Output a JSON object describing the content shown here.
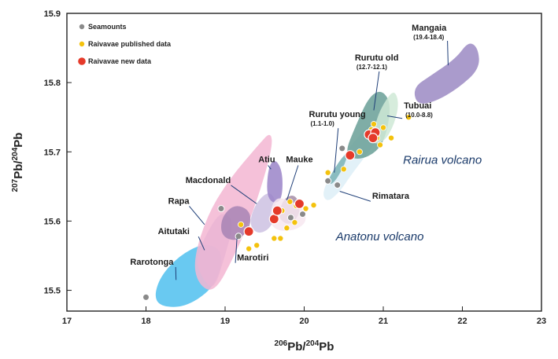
{
  "chart_data": {
    "type": "scatter",
    "xlabel": "206Pb/204Pb",
    "ylabel": "207Pb/204Pb",
    "xlim": [
      17,
      23
    ],
    "ylim": [
      15.47,
      15.9
    ],
    "xticks": [
      "17",
      "18",
      "19",
      "20",
      "21",
      "22",
      "23"
    ],
    "yticks": [
      {
        "v": 15.5,
        "label": "15.5"
      },
      {
        "v": 15.6,
        "label": "15.6"
      },
      {
        "v": 15.7,
        "label": "15.7"
      },
      {
        "v": 15.8,
        "label": "15.8"
      },
      {
        "v": 15.9,
        "label": "15.9"
      }
    ],
    "legend": {
      "position": "top-left",
      "entries": [
        {
          "label": "Seamounts",
          "color": "#8a8a8a"
        },
        {
          "label": "Raivavae published data",
          "color": "#f4c20d"
        },
        {
          "label": "Raivavae new data",
          "color": "#e53a2a"
        }
      ]
    },
    "fields": [
      {
        "name": "Rarotonga",
        "color": "#4fc0ee",
        "points": [
          [
            18.1,
            15.49
          ],
          [
            18.2,
            15.476
          ],
          [
            18.5,
            15.476
          ],
          [
            18.82,
            15.5
          ],
          [
            18.95,
            15.53
          ],
          [
            18.95,
            15.56
          ],
          [
            18.72,
            15.568
          ],
          [
            18.42,
            15.55
          ],
          [
            18.18,
            15.52
          ]
        ]
      },
      {
        "name": "Aitutaki",
        "color": "#b4b1dd",
        "points": [
          [
            18.72,
            15.515
          ],
          [
            18.86,
            15.5
          ],
          [
            19.0,
            15.55
          ],
          [
            19.12,
            15.6
          ],
          [
            18.96,
            15.615
          ],
          [
            18.8,
            15.59
          ],
          [
            18.62,
            15.545
          ]
        ]
      },
      {
        "name": "Rapa",
        "color": "#f3b6d2",
        "points": [
          [
            18.6,
            15.545
          ],
          [
            18.78,
            15.61
          ],
          [
            19.05,
            15.66
          ],
          [
            19.42,
            15.71
          ],
          [
            19.58,
            15.73
          ],
          [
            19.6,
            15.705
          ],
          [
            19.38,
            15.62
          ],
          [
            19.12,
            15.55
          ],
          [
            18.86,
            15.495
          ],
          [
            18.65,
            15.51
          ]
        ]
      },
      {
        "name": "Marotiri",
        "color": "#a784b4",
        "points": [
          [
            18.95,
            15.578
          ],
          [
            19.15,
            15.57
          ],
          [
            19.32,
            15.59
          ],
          [
            19.32,
            15.615
          ],
          [
            19.12,
            15.625
          ],
          [
            18.95,
            15.605
          ]
        ]
      },
      {
        "name": "Macdonald",
        "color": "#ccc1e2",
        "points": [
          [
            19.3,
            15.595
          ],
          [
            19.38,
            15.625
          ],
          [
            19.56,
            15.645
          ],
          [
            19.66,
            15.625
          ],
          [
            19.6,
            15.592
          ],
          [
            19.42,
            15.58
          ]
        ]
      },
      {
        "name": "Atiu",
        "color": "#9a84c8",
        "points": [
          [
            19.52,
            15.64
          ],
          [
            19.55,
            15.68
          ],
          [
            19.64,
            15.69
          ],
          [
            19.73,
            15.67
          ],
          [
            19.72,
            15.63
          ],
          [
            19.6,
            15.625
          ]
        ]
      },
      {
        "name": "Mauke",
        "color": "#a48ca6",
        "points": [
          [
            19.68,
            15.615
          ],
          [
            19.76,
            15.635
          ],
          [
            19.9,
            15.638
          ],
          [
            19.96,
            15.614
          ],
          [
            19.84,
            15.594
          ],
          [
            19.7,
            15.6
          ]
        ]
      },
      {
        "name": "Anatonu",
        "color": "#f7e8f0",
        "points": [
          [
            19.55,
            15.6
          ],
          [
            19.62,
            15.635
          ],
          [
            19.82,
            15.63
          ],
          [
            19.98,
            15.62
          ],
          [
            20.04,
            15.6
          ],
          [
            19.9,
            15.587
          ],
          [
            19.66,
            15.585
          ]
        ]
      },
      {
        "name": "Rimatara",
        "color": "#ddeef7",
        "points": [
          [
            20.22,
            15.645
          ],
          [
            20.52,
            15.7
          ],
          [
            20.82,
            15.74
          ],
          [
            21.06,
            15.762
          ],
          [
            21.08,
            15.742
          ],
          [
            20.85,
            15.705
          ],
          [
            20.6,
            15.668
          ],
          [
            20.45,
            15.642
          ],
          [
            20.28,
            15.626
          ]
        ]
      },
      {
        "name": "Rurutu young",
        "color": "#7ab3b6",
        "points": [
          [
            20.28,
            15.656
          ],
          [
            20.46,
            15.69
          ],
          [
            20.56,
            15.7
          ],
          [
            20.5,
            15.678
          ],
          [
            20.36,
            15.652
          ]
        ]
      },
      {
        "name": "Rurutu old",
        "color": "#689f96",
        "points": [
          [
            20.5,
            15.695
          ],
          [
            20.66,
            15.74
          ],
          [
            20.82,
            15.78
          ],
          [
            20.98,
            15.79
          ],
          [
            21.1,
            15.77
          ],
          [
            21.04,
            15.724
          ],
          [
            20.92,
            15.7
          ],
          [
            20.7,
            15.688
          ]
        ]
      },
      {
        "name": "Tubuai",
        "color": "#cfe9d6",
        "points": [
          [
            20.84,
            15.71
          ],
          [
            20.92,
            15.75
          ],
          [
            21.02,
            15.773
          ],
          [
            21.14,
            15.79
          ],
          [
            21.2,
            15.77
          ],
          [
            21.14,
            15.74
          ],
          [
            21.02,
            15.715
          ]
        ]
      },
      {
        "name": "Mangaia",
        "color": "#9b8ac3",
        "points": [
          [
            21.38,
            15.793
          ],
          [
            21.6,
            15.81
          ],
          [
            21.92,
            15.835
          ],
          [
            22.08,
            15.86
          ],
          [
            22.2,
            15.85
          ],
          [
            22.22,
            15.82
          ],
          [
            21.95,
            15.792
          ],
          [
            21.65,
            15.772
          ],
          [
            21.42,
            15.768
          ]
        ]
      }
    ],
    "region_labels": [
      {
        "text": "Rarotonga",
        "sub": "",
        "lx": 17.8,
        "ly": 15.537,
        "tx": 18.38,
        "ty": 15.515
      },
      {
        "text": "Aitutaki",
        "sub": "",
        "lx": 18.15,
        "ly": 15.581,
        "tx": 18.74,
        "ty": 15.558
      },
      {
        "text": "Rapa",
        "sub": "",
        "lx": 18.28,
        "ly": 15.625,
        "tx": 18.74,
        "ty": 15.595
      },
      {
        "text": "Macdonald",
        "sub": "",
        "lx": 18.5,
        "ly": 15.655,
        "tx": 19.4,
        "ty": 15.625
      },
      {
        "text": "Atiu",
        "sub": "",
        "lx": 19.42,
        "ly": 15.685,
        "tx": 19.58,
        "ty": 15.675
      },
      {
        "text": "Mauke",
        "sub": "",
        "lx": 19.77,
        "ly": 15.685,
        "tx": 19.78,
        "ty": 15.63
      },
      {
        "text": "Marotiri",
        "sub": "",
        "lx": 19.15,
        "ly": 15.543,
        "tx": 19.15,
        "ty": 15.575
      },
      {
        "text": "Rurutu young",
        "sub": "(1.1-1.0)",
        "lx": 20.06,
        "ly": 15.75,
        "tx": 20.38,
        "ty": 15.67
      },
      {
        "text": "Rurutu old",
        "sub": "(12.7-12.1)",
        "lx": 20.64,
        "ly": 15.832,
        "tx": 20.88,
        "ty": 15.76
      },
      {
        "text": "Tubuai",
        "sub": "(10.0-8.8)",
        "lx": 21.26,
        "ly": 15.763,
        "tx": 21.05,
        "ty": 15.752
      },
      {
        "text": "Mangaia",
        "sub": "(19.4-18.4)",
        "lx": 21.36,
        "ly": 15.875,
        "tx": 21.82,
        "ty": 15.825
      },
      {
        "text": "Rimatara",
        "sub": "",
        "lx": 20.86,
        "ly": 15.632,
        "tx": 20.45,
        "ty": 15.643
      }
    ],
    "volcano_labels": [
      {
        "text": "Raivavae",
        "x": 21.25,
        "y": 15.683,
        "shown": "Rairua volcano"
      },
      {
        "text": "Anatonu",
        "x": 20.4,
        "y": 15.572,
        "shown": "Anatonu volcano"
      }
    ],
    "volcano_label_text": [
      "Rairua volcano",
      "Anatonu volcano"
    ],
    "seamounts": [
      [
        18.0,
        15.49
      ],
      [
        18.95,
        15.618
      ],
      [
        19.17,
        15.578
      ],
      [
        19.83,
        15.605
      ],
      [
        19.98,
        15.61
      ],
      [
        20.48,
        15.705
      ],
      [
        20.42,
        15.652
      ],
      [
        20.3,
        15.658
      ]
    ],
    "published": [
      [
        19.2,
        15.595
      ],
      [
        19.3,
        15.56
      ],
      [
        19.4,
        15.565
      ],
      [
        19.62,
        15.575
      ],
      [
        19.62,
        15.6
      ],
      [
        19.7,
        15.575
      ],
      [
        19.78,
        15.59
      ],
      [
        19.88,
        15.598
      ],
      [
        20.02,
        15.618
      ],
      [
        20.12,
        15.623
      ],
      [
        19.72,
        15.615
      ],
      [
        19.82,
        15.628
      ],
      [
        19.9,
        15.622
      ],
      [
        20.3,
        15.67
      ],
      [
        20.5,
        15.675
      ],
      [
        20.7,
        15.7
      ],
      [
        20.85,
        15.732
      ],
      [
        20.92,
        15.72
      ],
      [
        20.96,
        15.71
      ],
      [
        21.1,
        15.72
      ],
      [
        21.32,
        15.75
      ],
      [
        21.0,
        15.735
      ],
      [
        20.88,
        15.74
      ]
    ],
    "new_data": [
      [
        19.3,
        15.585
      ],
      [
        19.62,
        15.603
      ],
      [
        19.66,
        15.615
      ],
      [
        19.94,
        15.625
      ],
      [
        20.58,
        15.695
      ],
      [
        20.82,
        15.725
      ],
      [
        20.9,
        15.728
      ],
      [
        20.87,
        15.72
      ]
    ]
  }
}
